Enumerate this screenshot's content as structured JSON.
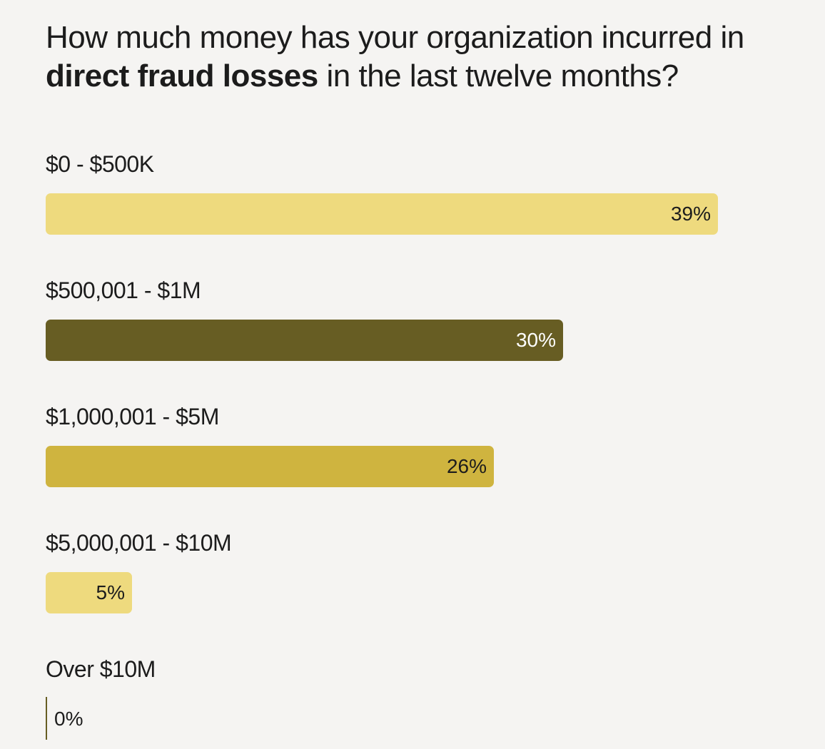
{
  "title": {
    "part1": "How much money has your organization incurred in",
    "bold": "direct fraud losses",
    "part2": "in the last twelve months?"
  },
  "chart_data": {
    "type": "bar",
    "orientation": "horizontal",
    "title": "How much money has your organization incurred in direct fraud losses in the last twelve months?",
    "categories": [
      "$0 - $500K",
      "$500,001 - $1M",
      "$1,000,001 - $5M",
      "$5,000,001 - $10M",
      "Over $10M"
    ],
    "values": [
      39,
      30,
      26,
      5,
      0
    ],
    "value_labels": [
      "39%",
      "30%",
      "26%",
      "5%",
      "0%"
    ],
    "unit": "%",
    "xlim": [
      0,
      39
    ],
    "grid": false,
    "colors": [
      "#eeda7e",
      "#675d23",
      "#cfb43f",
      "#eeda7e",
      "#675d23"
    ],
    "label_colors": [
      "#1c1c1c",
      "#ffffff",
      "#1c1c1c",
      "#1c1c1c",
      "#1c1c1c"
    ]
  }
}
